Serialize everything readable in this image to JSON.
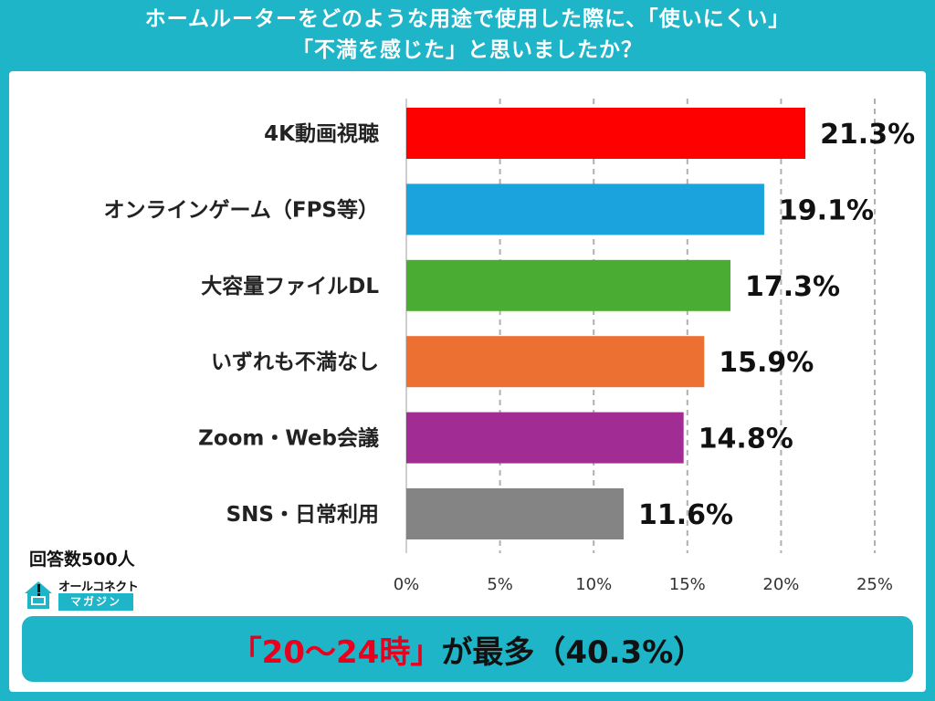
{
  "title": {
    "line1": "ホームルーターをどのような用途で使用した際に、「使いにくい」",
    "line2": "「不満を感じた」と思いましたか？"
  },
  "chart_data": {
    "type": "bar",
    "orientation": "horizontal",
    "categories": [
      "4K動画視聴",
      "オンラインゲーム（FPS等）",
      "大容量ファイルDL",
      "いずれも不満なし",
      "Zoom・Web会議",
      "SNS・日常利用"
    ],
    "values": [
      21.3,
      19.1,
      17.3,
      15.9,
      14.8,
      11.6
    ],
    "value_labels": [
      "21.3%",
      "19.1%",
      "17.3%",
      "15.9%",
      "14.8%",
      "11.6%"
    ],
    "colors": [
      "#ff0000",
      "#1aa3dc",
      "#4aac32",
      "#ec7032",
      "#a12c93",
      "#848484"
    ],
    "xlim": [
      0,
      25
    ],
    "xticks": [
      0,
      5,
      10,
      15,
      20,
      25
    ],
    "xtick_labels": [
      "0%",
      "5%",
      "10%",
      "15%",
      "20%",
      "25%"
    ],
    "grid": "vertical-dashed",
    "title": "ホームルーターをどのような用途で使用した際に、「使いにくい」「不満を感じた」と思いましたか？",
    "xlabel": "",
    "ylabel": ""
  },
  "respondents": "回答数500人",
  "logo": {
    "top": "オールコネクト",
    "bottom": "マガジン"
  },
  "banner": {
    "highlight": "「20～24時」",
    "text": "が最多（40.3%）"
  },
  "icons": {
    "logo": "house-logo-icon"
  }
}
